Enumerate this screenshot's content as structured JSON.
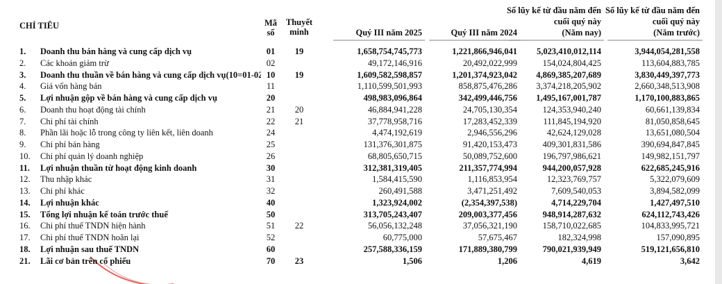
{
  "header": {
    "title": "CHỈ TIÊU",
    "code": [
      "Mã",
      "số"
    ],
    "note": [
      "Thuyết",
      "minh"
    ],
    "columns": [
      [
        "Quý III năm 2025"
      ],
      [
        "Quý III năm 2024"
      ],
      [
        "Số lũy kế từ đầu năm đến",
        "cuối quý này",
        "(Năm nay)"
      ],
      [
        "Số lũy kế từ đầu năm đến",
        "cuối quý này",
        "(Năm trước)"
      ]
    ]
  },
  "rows": [
    {
      "no": "1.",
      "label": "Doanh thu bán hàng và cung cấp dịch vụ",
      "code": "01",
      "note": "19",
      "values": [
        "1,658,754,745,773",
        "1,221,866,946,041",
        "5,023,410,012,114",
        "3,944,054,281,558"
      ],
      "bold": true
    },
    {
      "no": "2.",
      "label": "Các khoản giảm trừ",
      "code": "02",
      "values": [
        "49,172,146,916",
        "20,492,022,999",
        "154,024,804,425",
        "113,604,883,785"
      ],
      "bold": false
    },
    {
      "no": "3.",
      "label": "Doanh thu thuần về bán hàng và cung cấp dịch vụ(10=01-02",
      "code": "10",
      "note": "19",
      "values": [
        "1,609,582,598,857",
        "1,201,374,923,042",
        "4,869,385,207,689",
        "3,830,449,397,773"
      ],
      "bold": true
    },
    {
      "no": "4.",
      "label": "Giá vốn hàng bán",
      "code": "11",
      "values": [
        "1,110,599,501,993",
        "858,875,476,286",
        "3,374,218,205,902",
        "2,660,348,513,908"
      ],
      "bold": false
    },
    {
      "no": "5.",
      "label": "Lợi nhuận gộp về bán hàng và cung cấp dịch vụ",
      "code": "20",
      "values": [
        "498,983,096,864",
        "342,499,446,756",
        "1,495,167,001,787",
        "1,170,100,883,865"
      ],
      "bold": true
    },
    {
      "no": "6.",
      "label": "Doanh thu hoạt động tài chính",
      "code": "21",
      "note": "20",
      "values": [
        "46,884,941,228",
        "24,705,130,354",
        "124,353,940,240",
        "60,661,139,834"
      ],
      "bold": false
    },
    {
      "no": "7.",
      "label": "Chi phí tài chính",
      "code": "22",
      "note": "21",
      "values": [
        "37,778,958,716",
        "17,283,452,339",
        "111,845,194,920",
        "81,050,858,645"
      ],
      "bold": false
    },
    {
      "no": "8.",
      "label": "Phần lãi hoặc lỗ trong công ty liên kết, liên doanh",
      "code": "24",
      "values": [
        "4,474,192,619",
        "2,946,556,296",
        "42,624,129,028",
        "13,651,080,504"
      ],
      "bold": false
    },
    {
      "no": "9.",
      "label": "Chi phí bán hàng",
      "code": "25",
      "values": [
        "131,376,301,875",
        "91,420,153,473",
        "409,301,831,586",
        "390,694,847,845"
      ],
      "bold": false
    },
    {
      "no": "10.",
      "label": "Chi phí quản lý doanh nghiệp",
      "code": "26",
      "values": [
        "68,805,650,715",
        "50,089,752,600",
        "196,797,986,621",
        "149,982,151,797"
      ],
      "bold": false
    },
    {
      "no": "11.",
      "label": "Lợi nhuận thuần từ hoạt động kinh doanh",
      "code": "30",
      "values": [
        "312,381,319,405",
        "211,357,774,994",
        "944,200,057,928",
        "622,685,245,916"
      ],
      "bold": true
    },
    {
      "no": "12.",
      "label": "Thu nhập khác",
      "code": "31",
      "values": [
        "1,584,415,590",
        "1,116,853,954",
        "12,323,769,757",
        "5,322,079,609"
      ],
      "bold": false
    },
    {
      "no": "13.",
      "label": "Chi phí khác",
      "code": "32",
      "values": [
        "260,491,588",
        "3,471,251,492",
        "7,609,540,053",
        "3,894,582,099"
      ],
      "bold": false
    },
    {
      "no": "14.",
      "label": "Lợi nhuận khác",
      "code": "40",
      "values": [
        "1,323,924,002",
        "(2,354,397,538)",
        "4,714,229,704",
        "1,427,497,510"
      ],
      "bold": true
    },
    {
      "no": "15.",
      "label": "Tổng lợi nhuận kế toán trước thuế",
      "code": "50",
      "values": [
        "313,705,243,407",
        "209,003,377,456",
        "948,914,287,632",
        "624,112,743,426"
      ],
      "bold": true
    },
    {
      "no": "16.",
      "label": "Chi phí thuế TNDN hiện hành",
      "code": "51",
      "note": "22",
      "values": [
        "56,056,132,248",
        "37,056,321,190",
        "158,710,022,685",
        "104,833,995,721"
      ],
      "bold": false
    },
    {
      "no": "17.",
      "label": "Chi phí thuế TNDN hoãn lại",
      "code": "52",
      "values": [
        "60,775,000",
        "57,675,467",
        "182,324,998",
        "157,090,895"
      ],
      "bold": false
    },
    {
      "no": "18.",
      "label": "Lợi nhuận sau thuế TNDN",
      "code": "60",
      "values": [
        "257,588,336,159",
        "171,889,380,799",
        "790,021,939,949",
        "519,121,656,810"
      ],
      "bold": true
    },
    {
      "no": "21.",
      "label": "Lãi cơ bản trên cổ phiếu",
      "code": "70",
      "note": "23",
      "values": [
        "1,506",
        "1,206",
        "4,619",
        "3,642"
      ],
      "bold": true
    }
  ]
}
